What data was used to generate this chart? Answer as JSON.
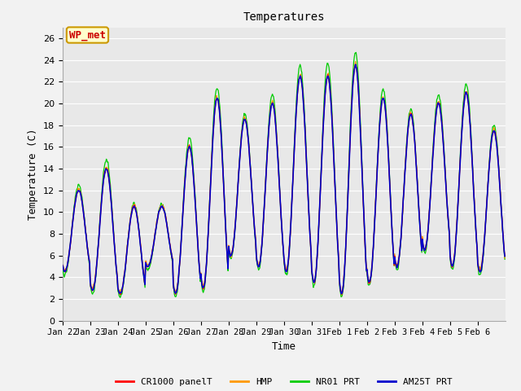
{
  "title": "Temperatures",
  "xlabel": "Time",
  "ylabel": "Temperature (C)",
  "ylim": [
    0,
    27
  ],
  "yticks": [
    0,
    2,
    4,
    6,
    8,
    10,
    12,
    14,
    16,
    18,
    20,
    22,
    24,
    26
  ],
  "bg_color": "#e8e8e8",
  "plot_bg_color": "#e8e8e8",
  "fig_bg_color": "#f2f2f2",
  "annotation_text": "WP_met",
  "annotation_bg": "#ffffcc",
  "annotation_edge": "#cc9900",
  "annotation_fg": "#cc0000",
  "legend_labels": [
    "CR1000 panelT",
    "HMP",
    "NR01 PRT",
    "AM25T PRT"
  ],
  "legend_colors": [
    "#ff0000",
    "#ff9900",
    "#00cc00",
    "#0000cc"
  ],
  "xtick_labels": [
    "Jan 22",
    "Jan 23",
    "Jan 24",
    "Jan 25",
    "Jan 26",
    "Jan 27",
    "Jan 28",
    "Jan 29",
    "Jan 30",
    "Jan 31",
    "Feb 1",
    "Feb 2",
    "Feb 3",
    "Feb 4",
    "Feb 5",
    "Feb 6"
  ],
  "day_mins_base": [
    4.5,
    2.8,
    2.5,
    5.0,
    2.5,
    3.0,
    6.0,
    5.0,
    4.5,
    3.5,
    2.5,
    3.5,
    5.0,
    6.5,
    5.0,
    4.5
  ],
  "day_maxs_base": [
    12.0,
    14.0,
    10.5,
    10.5,
    16.0,
    20.5,
    18.5,
    20.0,
    22.5,
    22.5,
    23.5,
    20.5,
    19.0,
    20.0,
    21.0,
    17.5
  ],
  "day_maxs_nr01_extra": [
    0.5,
    0.8,
    0.3,
    0.2,
    0.8,
    1.0,
    0.5,
    0.8,
    1.0,
    1.2,
    1.2,
    0.8,
    0.5,
    0.8,
    0.8,
    0.5
  ]
}
